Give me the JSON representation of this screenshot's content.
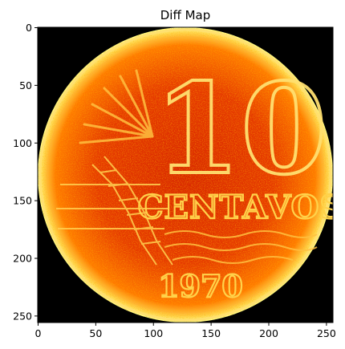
{
  "chart_data": {
    "type": "heatmap",
    "title": "Diff Map",
    "colormap": "hot",
    "image_width_units": 256,
    "image_height_units": 256,
    "xlim": [
      0,
      256
    ],
    "ylim": [
      256,
      0
    ],
    "x_ticks": [
      0,
      50,
      100,
      150,
      200,
      250
    ],
    "y_ticks": [
      0,
      50,
      100,
      150,
      200,
      250
    ],
    "x_tick_labels": [
      "0",
      "50",
      "100",
      "150",
      "200",
      "250"
    ],
    "y_tick_labels": [
      "0",
      "50",
      "100",
      "150",
      "200",
      "250"
    ],
    "grid": false,
    "legend": "none",
    "image_content": {
      "subject": "coin",
      "coin_numeral": "10",
      "coin_word": "CENTAVOS",
      "coin_year": "1970",
      "background_color": "#000000",
      "colors": {
        "low": "#000000",
        "mid_dark": "#8b0000",
        "mid": "#e63200",
        "high": "#ff9a00",
        "peak": "#ffff80"
      }
    }
  }
}
